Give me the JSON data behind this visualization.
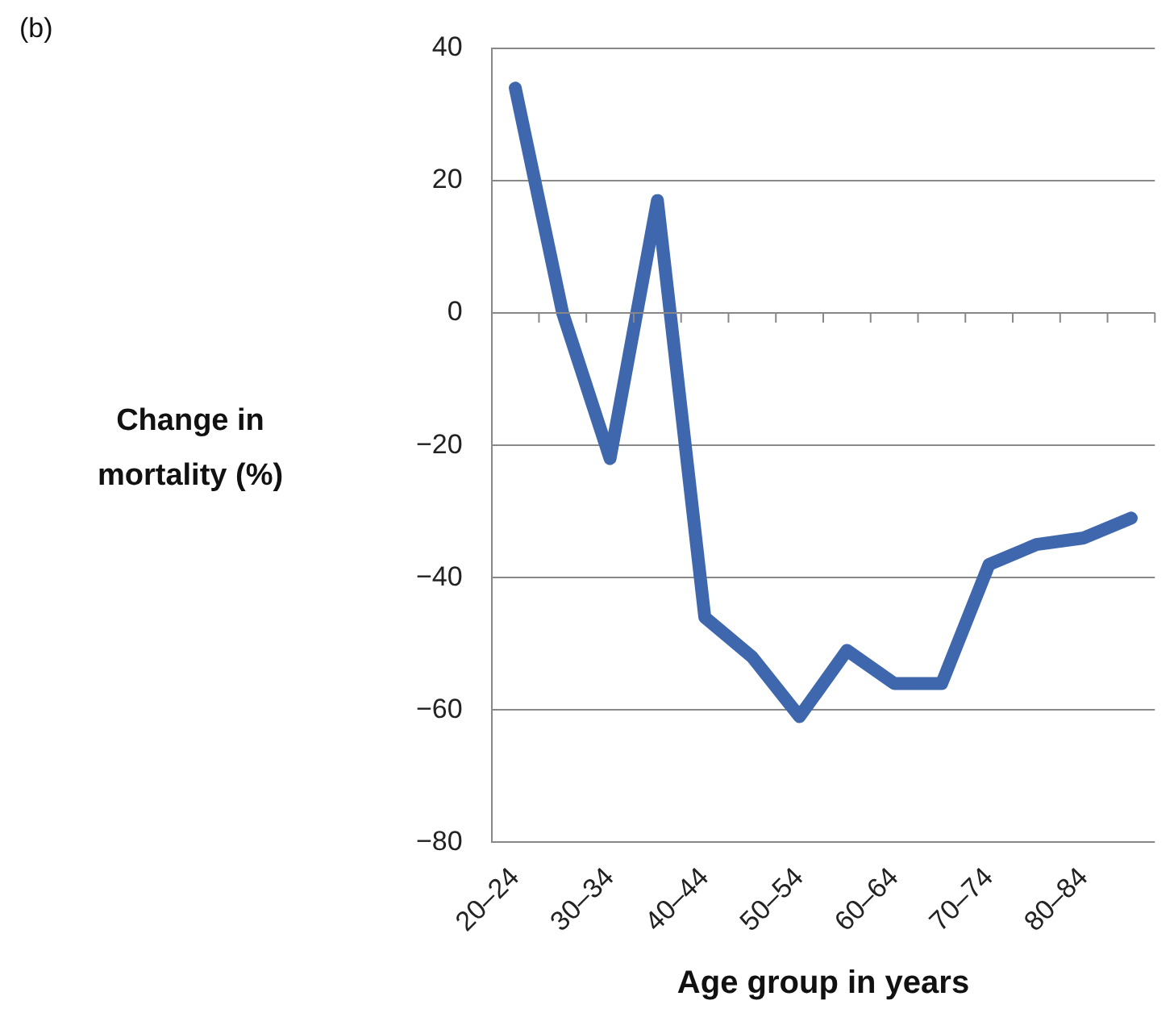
{
  "chart_data": {
    "type": "line",
    "xlabel": "Age group in years",
    "ylabel": "Change in mortality (%)",
    "annotations": [
      "(b)"
    ],
    "categories": [
      "20–24",
      null,
      "30–34",
      null,
      "40–44",
      null,
      "50–54",
      null,
      "60–64",
      null,
      "70–74",
      null,
      "80–84",
      null
    ],
    "series": [
      {
        "color": "#3e67ad",
        "values": [
          34,
          0,
          -22,
          17,
          -46,
          -52,
          -61,
          -51,
          -56,
          -56,
          -38,
          -35,
          -34,
          -31
        ]
      }
    ],
    "ylim": [
      -80,
      40
    ],
    "yticks": [
      {
        "value": -80,
        "label": "−80"
      },
      {
        "value": -60,
        "label": "−60"
      },
      {
        "value": -40,
        "label": "−40"
      },
      {
        "value": -20,
        "label": "−20"
      },
      0,
      20,
      40
    ],
    "grid": "y",
    "legend": false,
    "marker": "none",
    "line_style": "solid"
  }
}
